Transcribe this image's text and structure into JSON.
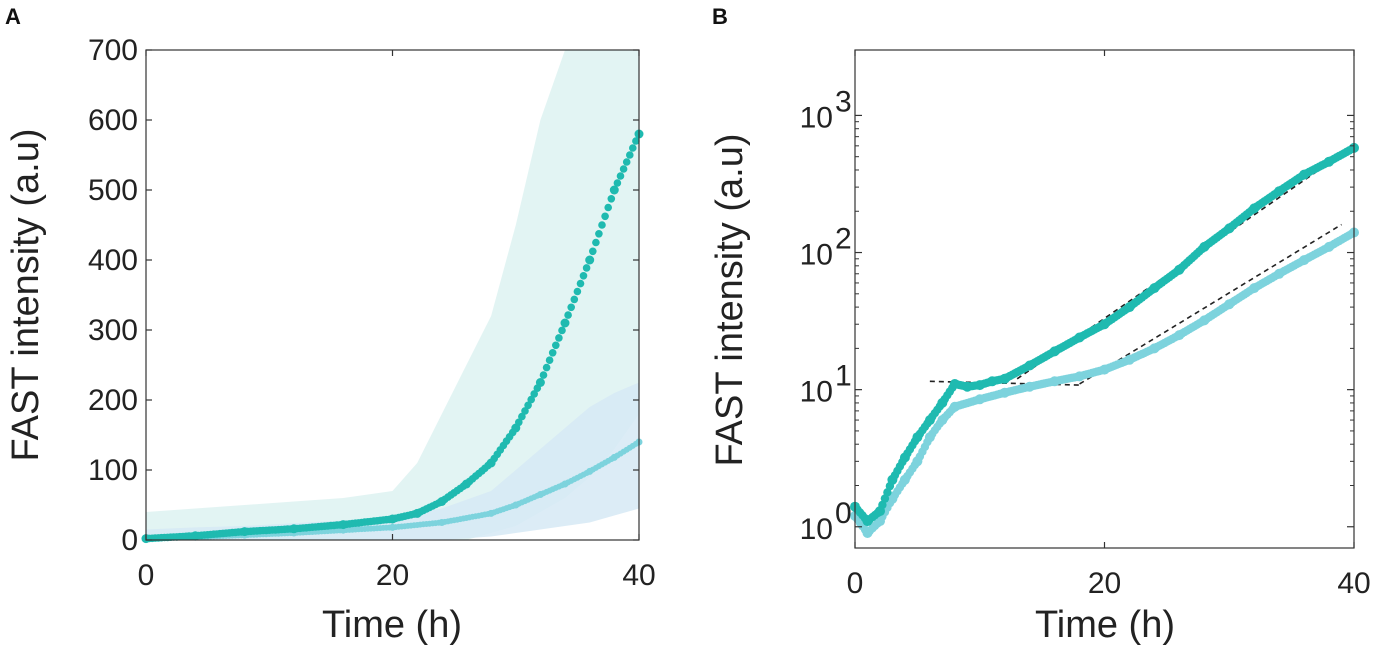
{
  "chart_data": [
    {
      "panel": "A",
      "type": "scatter",
      "xlabel": "Time (h)",
      "ylabel": "FAST  intensity (a.u)",
      "xlim": [
        0,
        40
      ],
      "ylim": [
        0,
        700
      ],
      "xticks": [
        "0",
        "20",
        "40"
      ],
      "yticks": [
        "0",
        "100",
        "200",
        "300",
        "400",
        "500",
        "600",
        "700"
      ],
      "yscale": "linear",
      "series": [
        {
          "name": "dark teal",
          "color": "#1FBAB0",
          "band_color": "#DDF2F1",
          "x": [
            0,
            4,
            8,
            12,
            16,
            20,
            22,
            24,
            26,
            28,
            30,
            32,
            34,
            36,
            38,
            40
          ],
          "y": [
            2,
            6,
            12,
            16,
            22,
            30,
            38,
            55,
            80,
            110,
            160,
            225,
            310,
            400,
            500,
            580
          ],
          "band_low": [
            0,
            0,
            0,
            0,
            0,
            0,
            0,
            0,
            0,
            10,
            20,
            40,
            60,
            90,
            130,
            180
          ],
          "band_high": [
            40,
            45,
            50,
            55,
            60,
            70,
            110,
            180,
            250,
            320,
            450,
            600,
            700,
            700,
            700,
            700
          ]
        },
        {
          "name": "light cyan",
          "color": "#7DD3DD",
          "band_color": "#D6E9F5",
          "x": [
            0,
            4,
            8,
            12,
            16,
            20,
            24,
            28,
            30,
            32,
            34,
            36,
            38,
            40
          ],
          "y": [
            2,
            4,
            7,
            10,
            14,
            18,
            25,
            38,
            50,
            65,
            80,
            98,
            118,
            140
          ],
          "band_low": [
            0,
            0,
            0,
            0,
            0,
            0,
            0,
            5,
            10,
            15,
            20,
            25,
            35,
            45
          ],
          "band_high": [
            15,
            18,
            20,
            24,
            28,
            33,
            45,
            70,
            100,
            130,
            160,
            190,
            210,
            225
          ]
        }
      ]
    },
    {
      "panel": "B",
      "type": "scatter",
      "xlabel": "Time (h)",
      "ylabel": "FAST  intensity (a.u)",
      "xlim": [
        0,
        40
      ],
      "ylim": [
        0.7,
        3000
      ],
      "yscale": "log",
      "xticks": [
        "0",
        "20",
        "40"
      ],
      "yticks": [
        {
          "base": "10",
          "exp": "0",
          "value": 1
        },
        {
          "base": "10",
          "exp": "1",
          "value": 10
        },
        {
          "base": "10",
          "exp": "2",
          "value": 100
        },
        {
          "base": "10",
          "exp": "3",
          "value": 1000
        }
      ],
      "series": [
        {
          "name": "dark teal",
          "color": "#1FBAB0",
          "x": [
            0,
            1,
            2,
            3,
            4,
            5,
            6,
            7,
            8,
            9,
            10,
            11,
            12,
            14,
            16,
            18,
            20,
            22,
            24,
            26,
            28,
            30,
            32,
            34,
            36,
            38,
            40
          ],
          "y": [
            1.4,
            1.1,
            1.3,
            2.2,
            3.2,
            4.5,
            6.0,
            8.0,
            11.0,
            10.5,
            10.8,
            11.5,
            12.0,
            15,
            19,
            24,
            30,
            40,
            55,
            75,
            110,
            150,
            210,
            280,
            370,
            460,
            580
          ]
        },
        {
          "name": "light cyan",
          "color": "#7DD3DD",
          "x": [
            0,
            1,
            2,
            3,
            4,
            5,
            6,
            7,
            8,
            10,
            12,
            14,
            16,
            18,
            20,
            22,
            24,
            26,
            28,
            30,
            32,
            34,
            36,
            38,
            40
          ],
          "y": [
            1.2,
            0.9,
            1.1,
            1.6,
            2.2,
            3.0,
            4.5,
            6.0,
            7.5,
            8.5,
            9.5,
            10.5,
            11.5,
            12.5,
            14,
            16.5,
            20,
            25,
            32,
            42,
            55,
            70,
            88,
            110,
            140
          ]
        }
      ],
      "fit_lines": [
        {
          "name": "plateau",
          "x": [
            6,
            18
          ],
          "y": [
            11.5,
            10.8
          ]
        },
        {
          "name": "dark teal fit",
          "x": [
            13,
            39
          ],
          "y": [
            12,
            520
          ]
        },
        {
          "name": "light cyan fit",
          "x": [
            18,
            39
          ],
          "y": [
            11,
            160
          ]
        }
      ]
    }
  ]
}
